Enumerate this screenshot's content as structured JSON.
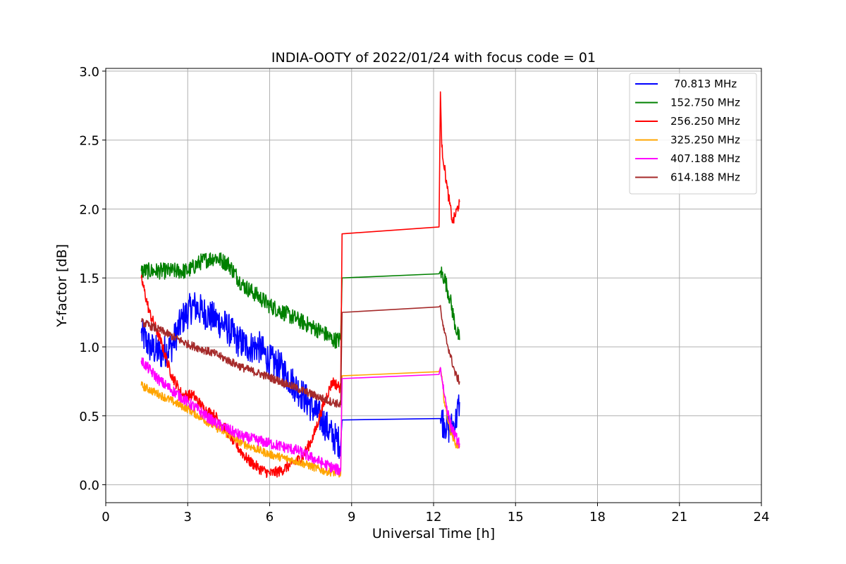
{
  "chart_data": {
    "type": "line",
    "title": "INDIA-OOTY of 2022/01/24 with focus code = 01",
    "xlabel": "Universal Time [h]",
    "ylabel": "Y-factor [dB]",
    "xlim": [
      0,
      24
    ],
    "ylim": [
      -0.13,
      3.02
    ],
    "xticks": [
      0,
      3,
      6,
      9,
      12,
      15,
      18,
      21,
      24
    ],
    "yticks": [
      0.0,
      0.5,
      1.0,
      1.5,
      2.0,
      2.5,
      3.0
    ],
    "xtick_labels": [
      "0",
      "3",
      "6",
      "9",
      "12",
      "15",
      "18",
      "21",
      "24"
    ],
    "ytick_labels": [
      "0.0",
      "0.5",
      "1.0",
      "1.5",
      "2.0",
      "2.5",
      "3.0"
    ],
    "grid": true,
    "legend_position": "upper right",
    "series": [
      {
        "name": " 70.813 MHz",
        "color": "#0000ff",
        "noise": 0.12,
        "x": [
          1.3,
          1.6,
          2.0,
          2.4,
          2.8,
          3.2,
          3.6,
          4.0,
          4.4,
          4.8,
          5.2,
          5.6,
          6.0,
          6.4,
          6.8,
          7.2,
          7.6,
          8.0,
          8.3,
          8.6,
          8.65,
          12.2,
          12.25,
          12.4,
          12.6,
          12.8,
          12.95
        ],
        "y": [
          1.1,
          1.0,
          0.95,
          1.0,
          1.2,
          1.3,
          1.25,
          1.2,
          1.15,
          1.05,
          1.0,
          1.0,
          0.9,
          0.85,
          0.75,
          0.65,
          0.55,
          0.45,
          0.35,
          0.3,
          0.47,
          0.48,
          0.48,
          0.45,
          0.4,
          0.45,
          0.6
        ]
      },
      {
        "name": "152.750 MHz",
        "color": "#008000",
        "noise": 0.06,
        "x": [
          1.3,
          1.8,
          2.5,
          3.0,
          3.5,
          4.0,
          4.5,
          5.0,
          5.5,
          6.0,
          6.5,
          7.0,
          7.5,
          8.0,
          8.3,
          8.6,
          8.65,
          12.2,
          12.25,
          12.4,
          12.6,
          12.8,
          12.95
        ],
        "y": [
          1.55,
          1.55,
          1.55,
          1.55,
          1.62,
          1.65,
          1.6,
          1.45,
          1.38,
          1.3,
          1.25,
          1.2,
          1.15,
          1.1,
          1.05,
          1.05,
          1.5,
          1.53,
          1.55,
          1.5,
          1.35,
          1.15,
          1.05
        ]
      },
      {
        "name": "256.250 MHz",
        "color": "#ff0000",
        "noise": 0.04,
        "x": [
          1.3,
          1.6,
          2.0,
          2.4,
          2.8,
          3.2,
          3.6,
          4.0,
          4.4,
          4.8,
          5.2,
          5.6,
          6.0,
          6.4,
          6.8,
          7.2,
          7.6,
          8.0,
          8.3,
          8.6,
          8.65,
          12.2,
          12.25,
          12.3,
          12.5,
          12.7,
          12.95
        ],
        "y": [
          1.5,
          1.25,
          1.05,
          0.8,
          0.65,
          0.65,
          0.55,
          0.5,
          0.4,
          0.28,
          0.18,
          0.12,
          0.08,
          0.1,
          0.15,
          0.2,
          0.35,
          0.6,
          0.75,
          0.7,
          1.82,
          1.87,
          2.85,
          2.45,
          2.15,
          1.9,
          2.05
        ]
      },
      {
        "name": "325.250 MHz",
        "color": "#ffa500",
        "noise": 0.03,
        "x": [
          1.3,
          2.0,
          3.0,
          4.0,
          5.0,
          6.0,
          7.0,
          8.0,
          8.6,
          8.65,
          12.2,
          12.25,
          12.4,
          12.6,
          12.8,
          12.95
        ],
        "y": [
          0.72,
          0.65,
          0.55,
          0.42,
          0.3,
          0.22,
          0.17,
          0.1,
          0.08,
          0.79,
          0.82,
          0.85,
          0.6,
          0.4,
          0.3,
          0.28
        ]
      },
      {
        "name": "407.188 MHz",
        "color": "#ff00ff",
        "noise": 0.04,
        "x": [
          1.3,
          2.0,
          3.0,
          4.0,
          5.0,
          6.0,
          7.0,
          8.0,
          8.6,
          8.65,
          12.2,
          12.25,
          12.4,
          12.6,
          12.8,
          12.95
        ],
        "y": [
          0.9,
          0.75,
          0.6,
          0.45,
          0.35,
          0.3,
          0.25,
          0.15,
          0.1,
          0.77,
          0.8,
          0.85,
          0.65,
          0.45,
          0.35,
          0.3
        ]
      },
      {
        "name": "614.188 MHz",
        "color": "#a52a2a",
        "noise": 0.03,
        "x": [
          1.3,
          2.0,
          3.0,
          4.0,
          5.0,
          6.0,
          7.0,
          8.0,
          8.6,
          8.65,
          12.2,
          12.25,
          12.3,
          12.4,
          12.6,
          12.8,
          12.95
        ],
        "y": [
          1.18,
          1.12,
          1.02,
          0.95,
          0.85,
          0.78,
          0.7,
          0.62,
          0.58,
          1.25,
          1.29,
          1.3,
          1.2,
          1.1,
          0.95,
          0.8,
          0.75
        ]
      }
    ]
  }
}
